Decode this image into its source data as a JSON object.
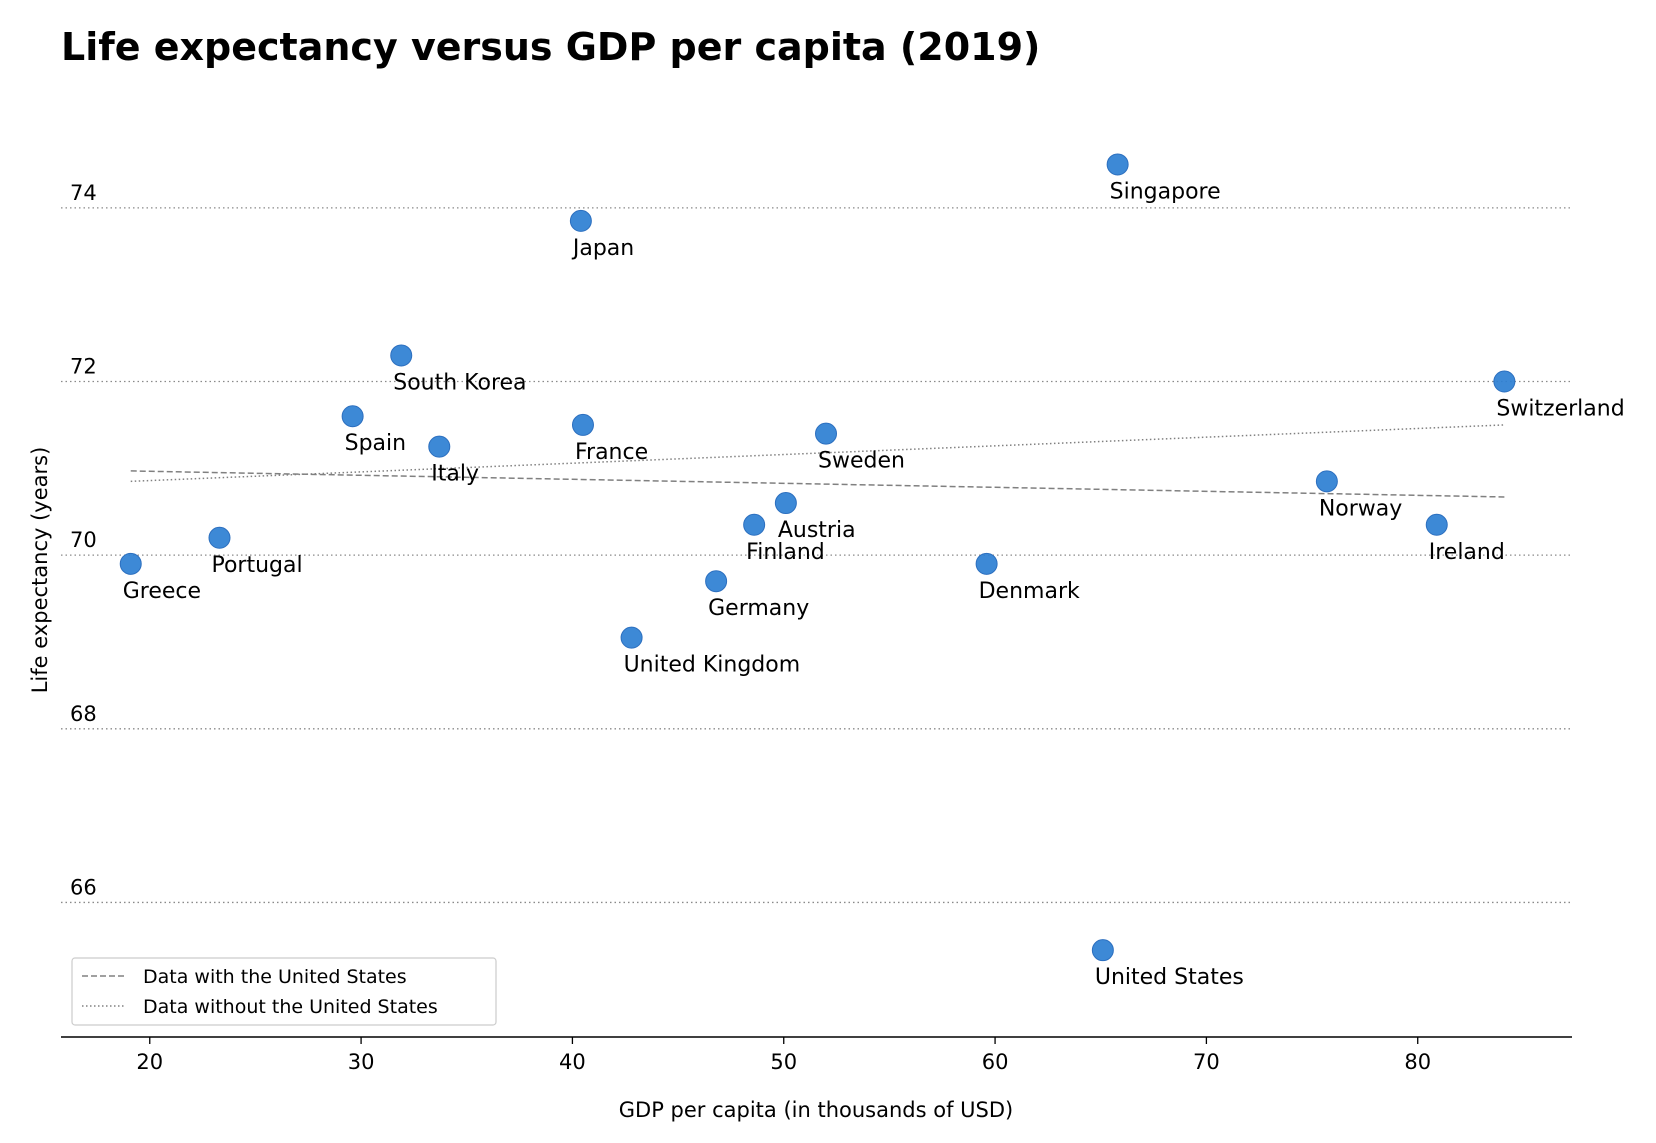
{
  "chart_data": {
    "type": "scatter",
    "title": "Life expectancy versus GDP per capita (2019)",
    "xlabel": "GDP per capita (in thousands of USD)",
    "ylabel": "Life expectancy (years)",
    "xlim": [
      15.8,
      87.3
    ],
    "ylim": [
      64.45,
      75.3
    ],
    "xticks": [
      20,
      30,
      40,
      50,
      60,
      70,
      80
    ],
    "yticks": [
      66,
      68,
      70,
      72,
      74
    ],
    "grid": "horizontal dotted",
    "marker_color": "#2d7fd2",
    "points": [
      {
        "label": "Greece",
        "x": 19.1,
        "y": 69.9
      },
      {
        "label": "Portugal",
        "x": 23.3,
        "y": 70.2
      },
      {
        "label": "Spain",
        "x": 29.6,
        "y": 71.6
      },
      {
        "label": "South Korea",
        "x": 31.9,
        "y": 72.3
      },
      {
        "label": "Italy",
        "x": 33.7,
        "y": 71.25
      },
      {
        "label": "Japan",
        "x": 40.4,
        "y": 73.85
      },
      {
        "label": "France",
        "x": 40.5,
        "y": 71.5
      },
      {
        "label": "United Kingdom",
        "x": 42.8,
        "y": 69.05
      },
      {
        "label": "Germany",
        "x": 46.8,
        "y": 69.7
      },
      {
        "label": "Finland",
        "x": 48.6,
        "y": 70.35
      },
      {
        "label": "Austria",
        "x": 50.1,
        "y": 70.6
      },
      {
        "label": "Sweden",
        "x": 52.0,
        "y": 71.4
      },
      {
        "label": "Denmark",
        "x": 59.6,
        "y": 69.9
      },
      {
        "label": "United States",
        "x": 65.1,
        "y": 65.45
      },
      {
        "label": "Singapore",
        "x": 65.8,
        "y": 74.5
      },
      {
        "label": "Norway",
        "x": 75.7,
        "y": 70.85
      },
      {
        "label": "Ireland",
        "x": 80.9,
        "y": 70.35
      },
      {
        "label": "Switzerland",
        "x": 84.1,
        "y": 72.0
      }
    ],
    "trendlines": [
      {
        "name": "Data with the United States",
        "style": "dashed",
        "x": [
          19.1,
          84.1
        ],
        "y": [
          70.97,
          70.67
        ]
      },
      {
        "name": "Data without the United States",
        "style": "dotted",
        "x": [
          19.1,
          84.1
        ],
        "y": [
          70.85,
          71.5
        ]
      }
    ],
    "legend": {
      "placement": "lower-left",
      "entries": [
        "Data with the United States",
        "Data without the United States"
      ]
    }
  }
}
